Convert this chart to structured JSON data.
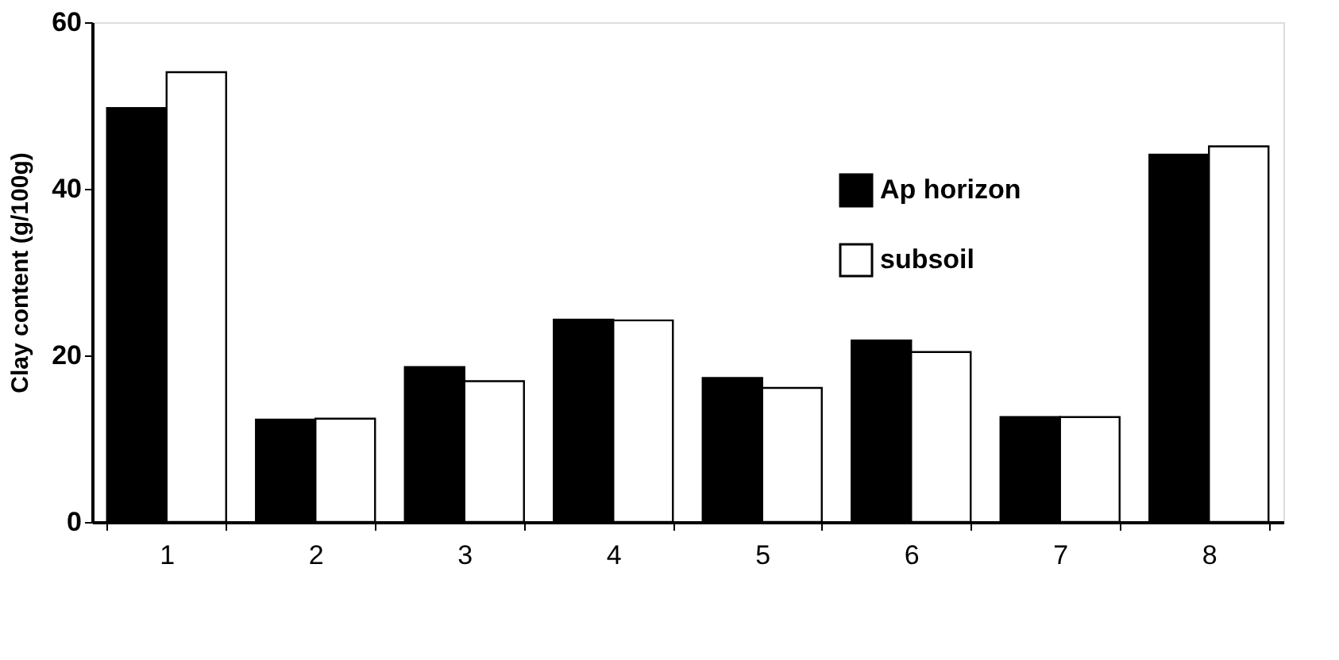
{
  "chart_data": {
    "type": "bar",
    "ylabel": "Clay content (g/100g)",
    "categories": [
      "1",
      "2",
      "3",
      "4",
      "5",
      "6",
      "7",
      "8"
    ],
    "series": [
      {
        "name": "Ap horizon",
        "color": "#000000",
        "values": [
          49.7,
          12.3,
          18.6,
          24.3,
          17.3,
          21.8,
          12.6,
          44.1
        ]
      },
      {
        "name": "subsoil",
        "color": "#ffffff",
        "values": [
          54.0,
          12.4,
          16.9,
          24.2,
          16.1,
          20.4,
          12.6,
          45.1
        ]
      }
    ],
    "ylim": [
      0,
      60
    ],
    "yticks": [
      0,
      20,
      40,
      60
    ],
    "grid": false,
    "legend": "right"
  }
}
